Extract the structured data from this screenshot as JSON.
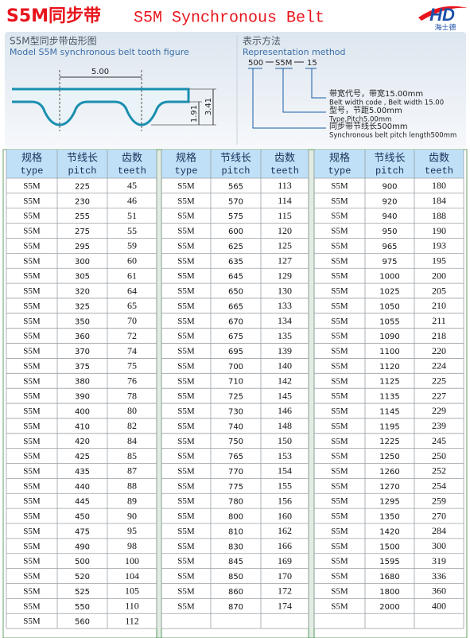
{
  "header": {
    "title_cn": "S5M同步带",
    "title_en": "S5M Synchronous Belt",
    "logo": "HD",
    "logo_sub": "海士德"
  },
  "tooth_figure": {
    "title": "S5M型同步带齿形图",
    "subtitle": "Model S5M synchronous belt tooth figure",
    "pitch": "5.00",
    "tooth_height": "1.91",
    "total_height": "3.41"
  },
  "representation": {
    "title": "表示方法",
    "subtitle": "Representation method",
    "code": [
      "500",
      "S5M",
      "15"
    ],
    "notes": [
      [
        "带宽代号，带宽15.00mm",
        "Belt width code , Belt width 15.00"
      ],
      [
        "型号，节距5.00mm",
        "Type,Pitch5.00mm"
      ],
      [
        "同步带节线长500mm",
        "Synchronous belt pitch length500mm"
      ]
    ]
  },
  "table": {
    "header": [
      [
        "规格",
        "type"
      ],
      [
        "节线长",
        "pitch"
      ],
      [
        "齿数",
        "teeth"
      ]
    ],
    "groups": [
      [
        [
          "S5M",
          225,
          45
        ],
        [
          "S5M",
          230,
          46
        ],
        [
          "S5M",
          255,
          51
        ],
        [
          "S5M",
          275,
          55
        ],
        [
          "S5M",
          295,
          59
        ],
        [
          "S5M",
          300,
          60
        ],
        [
          "S5M",
          305,
          61
        ],
        [
          "S5M",
          320,
          64
        ],
        [
          "S5M",
          325,
          65
        ],
        [
          "S5M",
          350,
          70
        ],
        [
          "S5M",
          360,
          72
        ],
        [
          "S5M",
          370,
          74
        ],
        [
          "S5M",
          375,
          75
        ],
        [
          "S5M",
          380,
          76
        ],
        [
          "S5M",
          390,
          78
        ],
        [
          "S5M",
          400,
          80
        ],
        [
          "S5M",
          410,
          82
        ],
        [
          "S5M",
          420,
          84
        ],
        [
          "S5M",
          425,
          85
        ],
        [
          "S5M",
          435,
          87
        ],
        [
          "S5M",
          440,
          88
        ],
        [
          "S5M",
          445,
          89
        ],
        [
          "S5M",
          450,
          90
        ],
        [
          "S5M",
          475,
          95
        ],
        [
          "S5M",
          490,
          98
        ],
        [
          "S5M",
          500,
          100
        ],
        [
          "S5M",
          520,
          104
        ],
        [
          "S5M",
          525,
          105
        ],
        [
          "S5M",
          550,
          110
        ],
        [
          "S5M",
          560,
          112
        ]
      ],
      [
        [
          "S5M",
          565,
          113
        ],
        [
          "S5M",
          570,
          114
        ],
        [
          "S5M",
          575,
          115
        ],
        [
          "S5M",
          600,
          120
        ],
        [
          "S5M",
          625,
          125
        ],
        [
          "S5M",
          635,
          127
        ],
        [
          "S5M",
          645,
          129
        ],
        [
          "S5M",
          650,
          130
        ],
        [
          "S5M",
          665,
          133
        ],
        [
          "S5M",
          670,
          134
        ],
        [
          "S5M",
          675,
          135
        ],
        [
          "S5M",
          695,
          139
        ],
        [
          "S5M",
          700,
          140
        ],
        [
          "S5M",
          710,
          142
        ],
        [
          "S5M",
          725,
          145
        ],
        [
          "S5M",
          730,
          146
        ],
        [
          "S5M",
          740,
          148
        ],
        [
          "S5M",
          750,
          150
        ],
        [
          "S5M",
          765,
          153
        ],
        [
          "S5M",
          770,
          154
        ],
        [
          "S5M",
          775,
          155
        ],
        [
          "S5M",
          780,
          156
        ],
        [
          "S5M",
          800,
          160
        ],
        [
          "S5M",
          810,
          162
        ],
        [
          "S5M",
          830,
          166
        ],
        [
          "S5M",
          845,
          169
        ],
        [
          "S5M",
          850,
          170
        ],
        [
          "S5M",
          860,
          172
        ],
        [
          "S5M",
          870,
          174
        ]
      ],
      [
        [
          "S5M",
          900,
          180
        ],
        [
          "S5M",
          920,
          184
        ],
        [
          "S5M",
          940,
          188
        ],
        [
          "S5M",
          950,
          190
        ],
        [
          "S5M",
          965,
          193
        ],
        [
          "S5M",
          975,
          195
        ],
        [
          "S5M",
          1000,
          200
        ],
        [
          "S5M",
          1025,
          205
        ],
        [
          "S5M",
          1050,
          210
        ],
        [
          "S5M",
          1055,
          211
        ],
        [
          "S5M",
          1090,
          218
        ],
        [
          "S5M",
          1100,
          220
        ],
        [
          "S5M",
          1120,
          224
        ],
        [
          "S5M",
          1125,
          225
        ],
        [
          "S5M",
          1135,
          227
        ],
        [
          "S5M",
          1145,
          229
        ],
        [
          "S5M",
          1195,
          239
        ],
        [
          "S5M",
          1225,
          245
        ],
        [
          "S5M",
          1250,
          250
        ],
        [
          "S5M",
          1260,
          252
        ],
        [
          "S5M",
          1270,
          254
        ],
        [
          "S5M",
          1295,
          259
        ],
        [
          "S5M",
          1350,
          270
        ],
        [
          "S5M",
          1420,
          284
        ],
        [
          "S5M",
          1500,
          300
        ],
        [
          "S5M",
          1595,
          319
        ],
        [
          "S5M",
          1680,
          336
        ],
        [
          "S5M",
          1800,
          360
        ],
        [
          "S5M",
          2000,
          400
        ]
      ]
    ]
  }
}
